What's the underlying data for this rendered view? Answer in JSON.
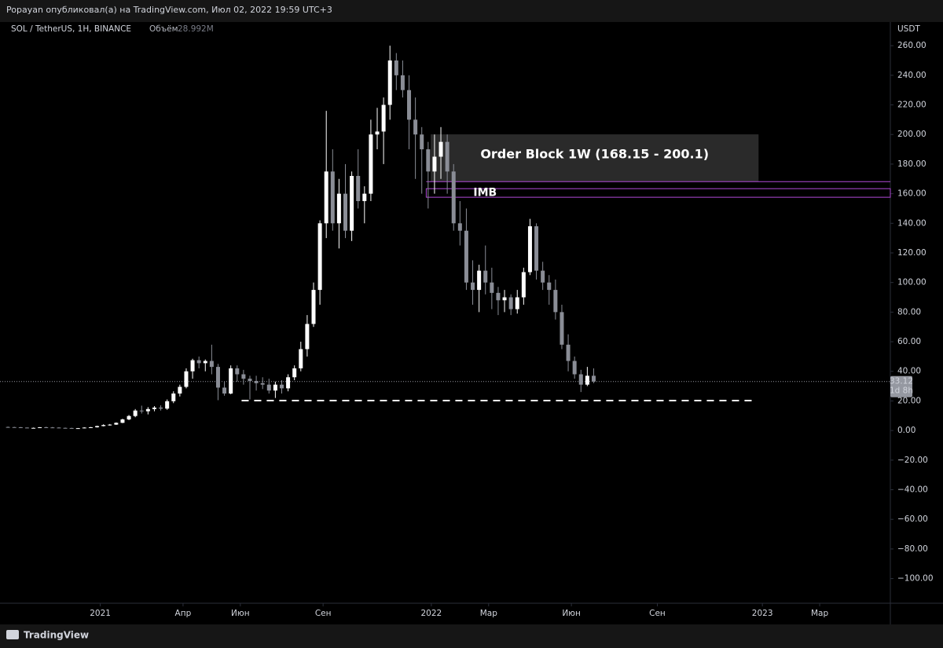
{
  "header": {
    "title": "Popayan опубликовал(а) на TradingView.com, Июл 02, 2022 19:59 UTC+3"
  },
  "footer": {
    "brand": "TradingView"
  },
  "chart_data": {
    "type": "candlestick",
    "title": "SOL / TetherUS, 1H, BINANCE",
    "volume_label": "Объём",
    "volume_value": "28.992M",
    "y_unit": "USDT",
    "up_color": "#ffffff",
    "down_color": "#8a8d96",
    "xlim": [
      -1.25,
      138.6
    ],
    "ylim": [
      -131,
      276
    ],
    "xticks": [
      {
        "value": 14.5,
        "label": "2021"
      },
      {
        "value": 27.5,
        "label": "Апр"
      },
      {
        "value": 36.5,
        "label": "Июн"
      },
      {
        "value": 49.5,
        "label": "Сен"
      },
      {
        "value": 66.5,
        "label": "2022"
      },
      {
        "value": 75.5,
        "label": "Мар"
      },
      {
        "value": 88.5,
        "label": "Июн"
      },
      {
        "value": 102,
        "label": "Сен"
      },
      {
        "value": 118.5,
        "label": "2023"
      },
      {
        "value": 127.5,
        "label": "Мар"
      }
    ],
    "yticks": [
      {
        "value": 260,
        "label": "260.00"
      },
      {
        "value": 240,
        "label": "240.00"
      },
      {
        "value": 220,
        "label": "220.00"
      },
      {
        "value": 200,
        "label": "200.00"
      },
      {
        "value": 180,
        "label": "180.00"
      },
      {
        "value": 160,
        "label": "160.00"
      },
      {
        "value": 140,
        "label": "140.00"
      },
      {
        "value": 120,
        "label": "120.00"
      },
      {
        "value": 100,
        "label": "100.00"
      },
      {
        "value": 80,
        "label": "80.00"
      },
      {
        "value": 60,
        "label": "60.00"
      },
      {
        "value": 40,
        "label": "40.00"
      },
      {
        "value": 20,
        "label": "20.00"
      },
      {
        "value": 0,
        "label": "0.00"
      },
      {
        "value": -20,
        "label": "−20.00"
      },
      {
        "value": -40,
        "label": "−40.00"
      },
      {
        "value": -60,
        "label": "−60.00"
      },
      {
        "value": -80,
        "label": "−80.00"
      },
      {
        "value": -100,
        "label": "−100.00"
      }
    ],
    "candles": [
      [
        2.4,
        2.7,
        2.2,
        2.3
      ],
      [
        2.3,
        2.5,
        2.1,
        2.2
      ],
      [
        2.2,
        2.4,
        1.9,
        2.0
      ],
      [
        2.0,
        2.1,
        1.6,
        1.7
      ],
      [
        1.7,
        2.0,
        1.5,
        1.8
      ],
      [
        1.8,
        2.3,
        1.7,
        2.2
      ],
      [
        2.2,
        2.6,
        2.0,
        2.1
      ],
      [
        2.1,
        2.4,
        1.9,
        2.0
      ],
      [
        2.0,
        2.2,
        1.7,
        1.8
      ],
      [
        1.8,
        2.0,
        1.6,
        1.7
      ],
      [
        1.7,
        1.9,
        1.4,
        1.5
      ],
      [
        1.5,
        1.7,
        1.3,
        1.6
      ],
      [
        1.6,
        2.2,
        1.5,
        2.0
      ],
      [
        2.0,
        2.4,
        1.7,
        2.2
      ],
      [
        2.2,
        3.3,
        2.0,
        3.0
      ],
      [
        3.0,
        4.2,
        2.8,
        3.7
      ],
      [
        3.7,
        4.4,
        3.3,
        4.0
      ],
      [
        4.0,
        5.5,
        3.8,
        5.2
      ],
      [
        5.2,
        8.0,
        5.0,
        7.5
      ],
      [
        7.5,
        10.5,
        7.0,
        9.8
      ],
      [
        9.8,
        14.5,
        9.0,
        13.5
      ],
      [
        13.5,
        16.8,
        11.5,
        13.0
      ],
      [
        13.0,
        15.8,
        10.9,
        14.5
      ],
      [
        14.5,
        16.5,
        13.0,
        15.5
      ],
      [
        15.5,
        17.0,
        13.5,
        14.8
      ],
      [
        14.8,
        21.0,
        14.0,
        19.8
      ],
      [
        19.8,
        26.5,
        18.5,
        25.0
      ],
      [
        25.0,
        31.0,
        23.0,
        29.5
      ],
      [
        29.5,
        42.0,
        28.5,
        40.0
      ],
      [
        40.0,
        48.5,
        35.0,
        47.5
      ],
      [
        47.5,
        50.0,
        42.0,
        45.5
      ],
      [
        45.5,
        48.0,
        40.0,
        47.0
      ],
      [
        47.0,
        58.0,
        38.0,
        43.0
      ],
      [
        43.0,
        45.0,
        20.5,
        29.0
      ],
      [
        29.0,
        33.0,
        23.5,
        25.0
      ],
      [
        25.0,
        44.0,
        24.5,
        42.0
      ],
      [
        42.0,
        44.0,
        33.0,
        38.0
      ],
      [
        38.0,
        41.0,
        31.0,
        35.0
      ],
      [
        35.0,
        37.0,
        21.0,
        33.5
      ],
      [
        33.5,
        37.0,
        27.0,
        32.0
      ],
      [
        32.0,
        36.0,
        28.0,
        31.0
      ],
      [
        31.0,
        35.0,
        25.0,
        27.0
      ],
      [
        27.0,
        33.0,
        22.0,
        31.0
      ],
      [
        31.0,
        34.0,
        25.0,
        28.5
      ],
      [
        28.5,
        38.0,
        26.5,
        36.0
      ],
      [
        36.0,
        44.0,
        34.0,
        42.0
      ],
      [
        42.0,
        60.0,
        40.0,
        55.0
      ],
      [
        55.0,
        78.0,
        50.0,
        72.0
      ],
      [
        72.0,
        100.0,
        70.0,
        95.0
      ],
      [
        95.0,
        142.0,
        85.0,
        140.0
      ],
      [
        140.0,
        216.0,
        130.0,
        175.0
      ],
      [
        175.0,
        190.0,
        135.0,
        140.0
      ],
      [
        140.0,
        170.0,
        123.0,
        160.0
      ],
      [
        160.0,
        180.0,
        130.0,
        135.0
      ],
      [
        135.0,
        175.0,
        128.0,
        172.0
      ],
      [
        172.0,
        190.0,
        150.0,
        155.0
      ],
      [
        155.0,
        165.0,
        140.0,
        160.0
      ],
      [
        160.0,
        210.0,
        155.0,
        200.0
      ],
      [
        200.0,
        218.0,
        190.0,
        202.0
      ],
      [
        202.0,
        225.0,
        180.0,
        220.0
      ],
      [
        220.0,
        260.0,
        210.0,
        250.0
      ],
      [
        250.0,
        255.0,
        230.0,
        240.0
      ],
      [
        240.0,
        250.0,
        225.0,
        230.0
      ],
      [
        230.0,
        240.0,
        190.0,
        210.0
      ],
      [
        210.0,
        225.0,
        170.0,
        200.0
      ],
      [
        200.0,
        205.0,
        160.0,
        190.0
      ],
      [
        190.0,
        195.0,
        150.0,
        175.0
      ],
      [
        175.0,
        200.0,
        160.0,
        185.0
      ],
      [
        185.0,
        205.0,
        170.0,
        195.0
      ],
      [
        195.0,
        200.0,
        160.0,
        175.0
      ],
      [
        175.0,
        180.0,
        135.0,
        140.0
      ],
      [
        140.0,
        155.0,
        125.0,
        135.0
      ],
      [
        135.0,
        150.0,
        95.0,
        100.0
      ],
      [
        100.0,
        115.0,
        85.0,
        95.0
      ],
      [
        95.0,
        112.0,
        80.0,
        108.0
      ],
      [
        108.0,
        125.0,
        92.0,
        100.0
      ],
      [
        100.0,
        110.0,
        82.0,
        93.0
      ],
      [
        93.0,
        97.0,
        78.0,
        88.0
      ],
      [
        88.0,
        95.0,
        80.0,
        90.0
      ],
      [
        90.0,
        92.0,
        78.0,
        82.0
      ],
      [
        82.0,
        95.0,
        79.0,
        90.0
      ],
      [
        90.0,
        110.0,
        85.0,
        107.0
      ],
      [
        107.0,
        143.0,
        105.0,
        138.0
      ],
      [
        138.0,
        140.0,
        102.0,
        108.0
      ],
      [
        108.0,
        114.0,
        95.0,
        100.0
      ],
      [
        100.0,
        105.0,
        85.0,
        95.0
      ],
      [
        95.0,
        102.0,
        75.0,
        80.0
      ],
      [
        80.0,
        85.0,
        55.0,
        58.0
      ],
      [
        58.0,
        65.0,
        40.0,
        47.0
      ],
      [
        47.0,
        50.0,
        35.0,
        38.0
      ],
      [
        38.0,
        41.0,
        26.0,
        31.0
      ],
      [
        31.0,
        43.0,
        30.0,
        37.0
      ],
      [
        37.0,
        42.0,
        32.0,
        33.12
      ]
    ],
    "last_price": 33.12,
    "last_price_label": "33.12",
    "countdown": "1d 8h",
    "order_block": {
      "text": "Order Block 1W (168.15 - 200.1)",
      "x": [
        66.4,
        117.9
      ],
      "y": [
        168.15,
        200.1
      ],
      "color": "#2a2a2a"
    },
    "imbalance": {
      "text": "IMB",
      "x": [
        65.7,
        138.6
      ],
      "y": [
        157.6,
        163.4
      ],
      "top_line": 168.15,
      "color": "#b14ad9"
    },
    "support_line": {
      "x": [
        36.7,
        117.3
      ],
      "y": 20.2
    }
  }
}
